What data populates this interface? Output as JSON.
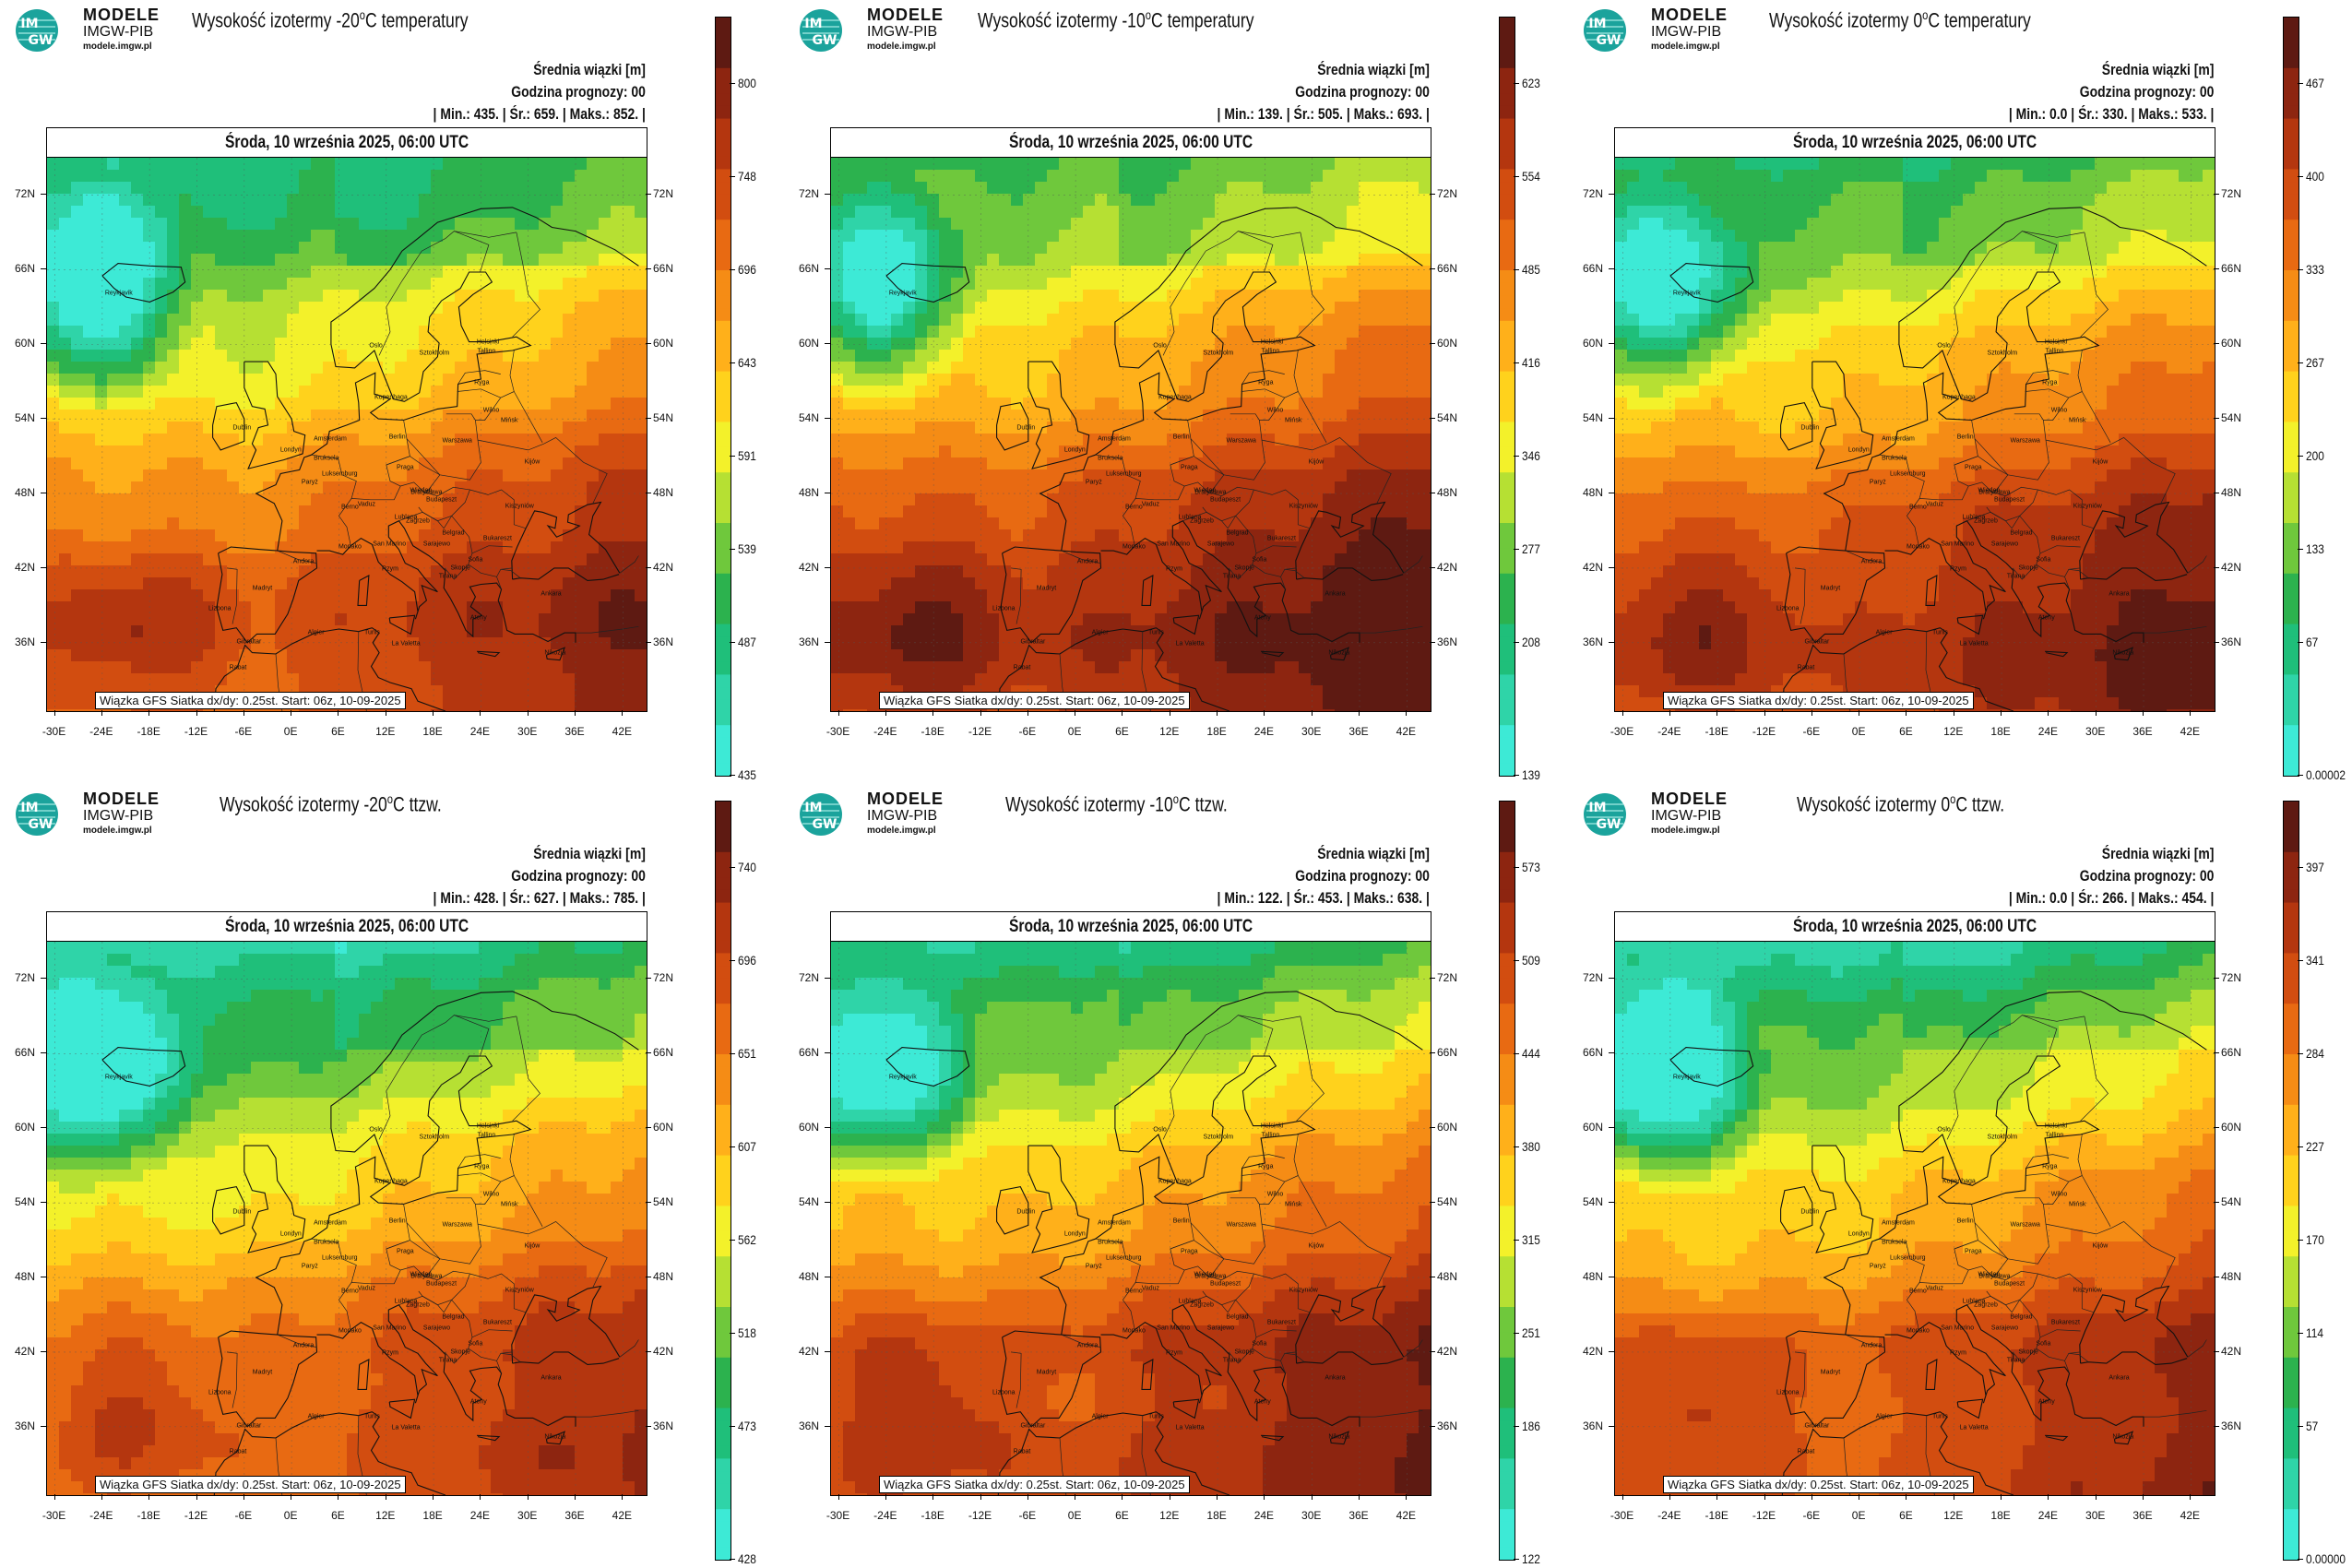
{
  "brand": {
    "line1": "MODELE",
    "line2": "IMGW-PIB",
    "url": "modele.imgw.pl",
    "logo_text1": "IM",
    "logo_text2": "GW"
  },
  "info_labels": {
    "legend": "Średnia wiązki [m]",
    "forecast_hour": "Godzina prognozy: 00"
  },
  "date_label": "Środa, 10 września 2025, 06:00 UTC",
  "footer_label": "Wiązka GFS Siatka dx/dy: 0.25st. Start: 06z, 10-09-2025",
  "lat_labels": [
    "72N",
    "66N",
    "60N",
    "54N",
    "48N",
    "42N",
    "36N"
  ],
  "lon_labels": [
    "-30E",
    "-24E",
    "-18E",
    "-12E",
    "-6E",
    "0E",
    "6E",
    "12E",
    "18E",
    "24E",
    "30E",
    "36E",
    "42E"
  ],
  "cities": [
    {
      "name": "Reykjavik",
      "lon": -21.9,
      "lat": 64.1
    },
    {
      "name": "Oslo",
      "lon": 10.7,
      "lat": 59.9
    },
    {
      "name": "Sztokholm",
      "lon": 18.1,
      "lat": 59.3
    },
    {
      "name": "Helsinki",
      "lon": 24.9,
      "lat": 60.2
    },
    {
      "name": "Tallinn",
      "lon": 24.7,
      "lat": 59.4
    },
    {
      "name": "Ryga",
      "lon": 24.1,
      "lat": 56.9
    },
    {
      "name": "Kopenhaga",
      "lon": 12.6,
      "lat": 55.7
    },
    {
      "name": "Wilno",
      "lon": 25.3,
      "lat": 54.7
    },
    {
      "name": "Dublin",
      "lon": -6.3,
      "lat": 53.3
    },
    {
      "name": "Londyn",
      "lon": -0.1,
      "lat": 51.5
    },
    {
      "name": "Amsterdam",
      "lon": 4.9,
      "lat": 52.4
    },
    {
      "name": "Berlin",
      "lon": 13.4,
      "lat": 52.5
    },
    {
      "name": "Warszawa",
      "lon": 21.0,
      "lat": 52.2
    },
    {
      "name": "Mińsk",
      "lon": 27.6,
      "lat": 53.9
    },
    {
      "name": "Bruksela",
      "lon": 4.4,
      "lat": 50.8
    },
    {
      "name": "Luksemburg",
      "lon": 6.1,
      "lat": 49.6
    },
    {
      "name": "Praga",
      "lon": 14.4,
      "lat": 50.1
    },
    {
      "name": "Kijów",
      "lon": 30.5,
      "lat": 50.5
    },
    {
      "name": "Paryż",
      "lon": 2.3,
      "lat": 48.9
    },
    {
      "name": "Wiedeń",
      "lon": 16.4,
      "lat": 48.2
    },
    {
      "name": "Bratysława",
      "lon": 17.1,
      "lat": 48.1
    },
    {
      "name": "Berno",
      "lon": 7.4,
      "lat": 46.9
    },
    {
      "name": "Vaduz",
      "lon": 9.5,
      "lat": 47.1
    },
    {
      "name": "Budapeszt",
      "lon": 19.0,
      "lat": 47.5
    },
    {
      "name": "Kiszyniów",
      "lon": 28.9,
      "lat": 47.0
    },
    {
      "name": "Lublana",
      "lon": 14.5,
      "lat": 46.1
    },
    {
      "name": "Zagrzeb",
      "lon": 16.0,
      "lat": 45.8
    },
    {
      "name": "Belgrad",
      "lon": 20.5,
      "lat": 44.8
    },
    {
      "name": "Bukareszt",
      "lon": 26.1,
      "lat": 44.4
    },
    {
      "name": "Monako",
      "lon": 7.4,
      "lat": 43.7
    },
    {
      "name": "San Marino",
      "lon": 12.4,
      "lat": 43.9
    },
    {
      "name": "Sarajewo",
      "lon": 18.4,
      "lat": 43.9
    },
    {
      "name": "Sofia",
      "lon": 23.3,
      "lat": 42.7
    },
    {
      "name": "Andora",
      "lon": 1.5,
      "lat": 42.5
    },
    {
      "name": "Rzym",
      "lon": 12.5,
      "lat": 41.9
    },
    {
      "name": "Skopje",
      "lon": 21.4,
      "lat": 42.0
    },
    {
      "name": "Tirana",
      "lon": 19.8,
      "lat": 41.3
    },
    {
      "name": "Madryt",
      "lon": -3.7,
      "lat": 40.4
    },
    {
      "name": "Lizbona",
      "lon": -9.1,
      "lat": 38.7
    },
    {
      "name": "Ateny",
      "lon": 23.7,
      "lat": 38.0
    },
    {
      "name": "Ankara",
      "lon": 32.9,
      "lat": 39.9
    },
    {
      "name": "Algier",
      "lon": 3.1,
      "lat": 36.8
    },
    {
      "name": "Tunis",
      "lon": 10.2,
      "lat": 36.8
    },
    {
      "name": "La Valetta",
      "lon": 14.5,
      "lat": 35.9
    },
    {
      "name": "Gibraltar",
      "lon": -5.4,
      "lat": 36.1
    },
    {
      "name": "Rabat",
      "lon": -6.8,
      "lat": 34.0
    },
    {
      "name": "Nikozja",
      "lon": 33.4,
      "lat": 35.2
    }
  ],
  "colors": {
    "scale": [
      "#3dead6",
      "#2fd4a8",
      "#1fbf7a",
      "#2cb24e",
      "#6fc83c",
      "#b6e033",
      "#f3f12a",
      "#ffd21c",
      "#ffb01a",
      "#f58c15",
      "#e86a12",
      "#d24d10",
      "#b4360f",
      "#8d2510",
      "#5e1a12"
    ]
  },
  "panels": [
    {
      "title_prefix": "Wysokość izotermy ",
      "title_value": "-20",
      "title_unit": "C",
      "title_suffix": " temperatury",
      "stats": {
        "min_label": "Min.:",
        "min": "435.",
        "avg_label": "Śr.:",
        "avg": "659.",
        "max_label": "Maks.:",
        "max": "852."
      },
      "colorbar_labels": [
        "800",
        "748",
        "696",
        "643",
        "591",
        "539",
        "487",
        "435"
      ],
      "field": {
        "base": 0.72,
        "bias": 0.0
      }
    },
    {
      "title_prefix": "Wysokość izotermy ",
      "title_value": "-10",
      "title_unit": "C",
      "title_suffix": " temperatury",
      "stats": {
        "min_label": "Min.:",
        "min": "139.",
        "avg_label": "Śr.:",
        "avg": "505.",
        "max_label": "Maks.:",
        "max": "693."
      },
      "colorbar_labels": [
        "623",
        "554",
        "485",
        "416",
        "346",
        "277",
        "208",
        "139"
      ],
      "field": {
        "base": 0.76,
        "bias": 0.05
      }
    },
    {
      "title_prefix": "Wysokość izotermy ",
      "title_value": "0",
      "title_unit": "C",
      "title_suffix": " temperatury",
      "stats": {
        "min_label": "Min.:",
        "min": "0.0",
        "avg_label": "Śr.:",
        "avg": "330.",
        "max_label": "Maks.:",
        "max": "533."
      },
      "colorbar_labels": [
        "467",
        "400",
        "333",
        "267",
        "200",
        "133",
        "67",
        "0.00002"
      ],
      "field": {
        "base": 0.74,
        "bias": 0.03
      }
    },
    {
      "title_prefix": "Wysokość izotermy ",
      "title_value": "-20",
      "title_unit": "C",
      "title_suffix": " ttzw.",
      "stats": {
        "min_label": "Min.:",
        "min": "428.",
        "avg_label": "Śr.:",
        "avg": "627.",
        "max_label": "Maks.:",
        "max": "785."
      },
      "colorbar_labels": [
        "740",
        "696",
        "651",
        "607",
        "562",
        "518",
        "473",
        "428"
      ],
      "field": {
        "base": 0.7,
        "bias": -0.02
      }
    },
    {
      "title_prefix": "Wysokość izotermy ",
      "title_value": "-10",
      "title_unit": "C",
      "title_suffix": " ttzw.",
      "stats": {
        "min_label": "Min.:",
        "min": "122.",
        "avg_label": "Śr.:",
        "avg": "453.",
        "max_label": "Maks.:",
        "max": "638."
      },
      "colorbar_labels": [
        "573",
        "509",
        "444",
        "380",
        "315",
        "251",
        "186",
        "122"
      ],
      "field": {
        "base": 0.72,
        "bias": 0.02
      }
    },
    {
      "title_prefix": "Wysokość izotermy ",
      "title_value": "0",
      "title_unit": "C",
      "title_suffix": " ttzw.",
      "stats": {
        "min_label": "Min.:",
        "min": "0.0",
        "avg_label": "Śr.:",
        "avg": "266.",
        "max_label": "Maks.:",
        "max": "454."
      },
      "colorbar_labels": [
        "397",
        "341",
        "284",
        "227",
        "170",
        "114",
        "57",
        "0.00000"
      ],
      "field": {
        "base": 0.7,
        "bias": 0.0
      }
    }
  ]
}
